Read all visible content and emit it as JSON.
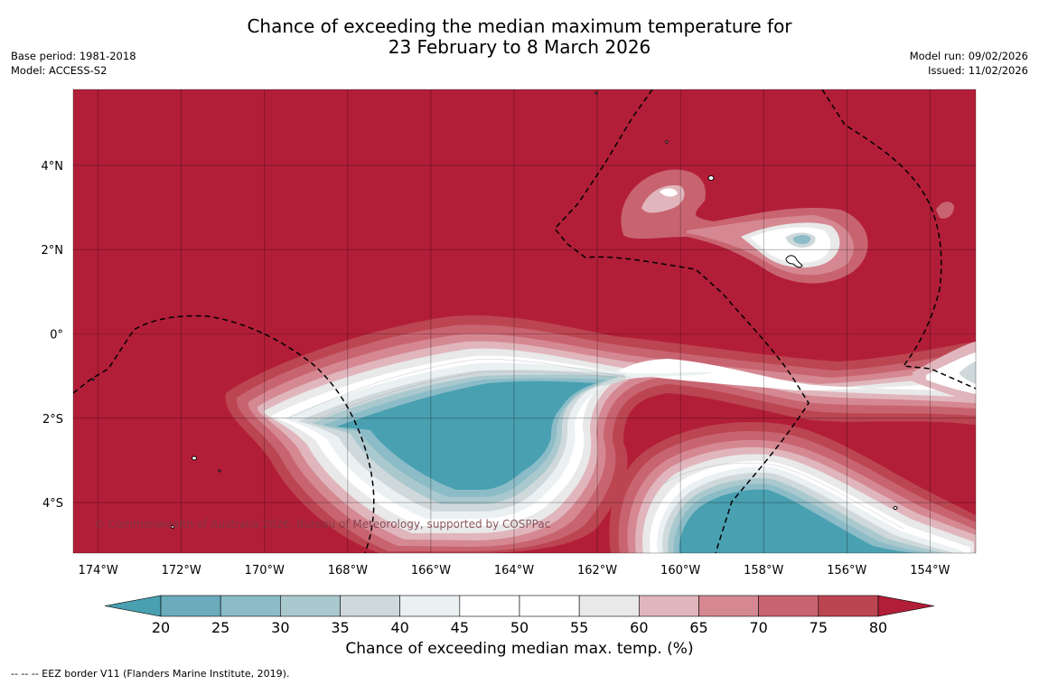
{
  "title_line1": "Chance of exceeding the median maximum temperature for",
  "title_line2": "23 February to 8 March 2026",
  "base_period": "Base period: 1981-2018",
  "model": "Model: ACCESS-S2",
  "model_run": "Model run: 09/02/2026",
  "issued": "Issued: 11/02/2026",
  "copyright": "© Commonwealth of Australia 2026, Bureau of Meteorology, supported by COSPPac",
  "footer_note": "-- -- -- EEZ border V11 (Flanders Marine Institute, 2019).",
  "colorbar": {
    "label": "Chance of exceeding median max. temp. (%)",
    "ticks": [
      "20",
      "25",
      "30",
      "35",
      "40",
      "45",
      "50",
      "55",
      "60",
      "65",
      "70",
      "75",
      "80"
    ],
    "colors": [
      "#6aacbb",
      "#8bbcc7",
      "#aac9ce",
      "#cfd9db",
      "#ebf1f2",
      "#ffffff",
      "#ffffff",
      "#e9e9e9",
      "#e0b6bc",
      "#d58892",
      "#c86470",
      "#bc4552"
    ],
    "under_color": "#49a0b1",
    "over_color": "#b21e38"
  },
  "map": {
    "lat_range": [
      -5.2,
      5.8
    ],
    "lon_range": [
      -174.6,
      -152.9
    ],
    "lat_ticks": [
      {
        "value": 4,
        "label": "4°N"
      },
      {
        "value": 2,
        "label": "2°N"
      },
      {
        "value": 0,
        "label": "0°"
      },
      {
        "value": -2,
        "label": "2°S"
      },
      {
        "value": -4,
        "label": "4°S"
      }
    ],
    "lon_ticks": [
      {
        "value": -174,
        "label": "174°W"
      },
      {
        "value": -172,
        "label": "172°W"
      },
      {
        "value": -170,
        "label": "170°W"
      },
      {
        "value": -168,
        "label": "168°W"
      },
      {
        "value": -166,
        "label": "166°W"
      },
      {
        "value": -164,
        "label": "164°W"
      },
      {
        "value": -162,
        "label": "162°W"
      },
      {
        "value": -160,
        "label": "160°W"
      },
      {
        "value": -158,
        "label": "158°W"
      },
      {
        "value": -156,
        "label": "156°W"
      },
      {
        "value": -154,
        "label": "154°W"
      }
    ]
  }
}
